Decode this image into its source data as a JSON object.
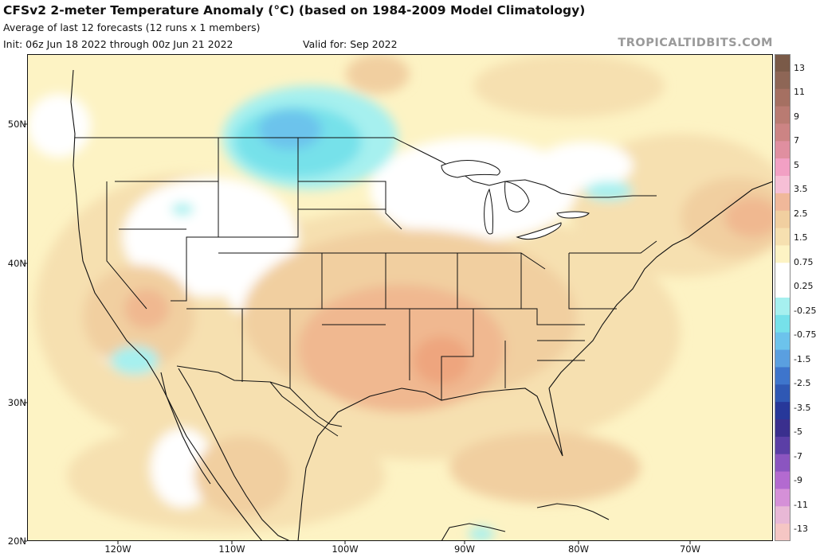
{
  "header": {
    "title": "CFSv2 2-meter Temperature Anomaly (°C) (based on 1984-2009 Model Climatology)",
    "subtitle": "Average of last 12 forecasts (12 runs x 1 members)",
    "init": "Init: 06z Jun 18 2022 through 00z Jun 21 2022",
    "valid": "Valid for: Sep 2022",
    "brand": "TROPICALTIDBITS.COM"
  },
  "axes": {
    "lat_labels": [
      "50N",
      "40N",
      "30N",
      "20N"
    ],
    "lon_labels": [
      "120W",
      "110W",
      "100W",
      "90W",
      "80W",
      "70W"
    ]
  },
  "colorbar": {
    "labels": [
      "13",
      "11",
      "9",
      "7",
      "5",
      "3.5",
      "2.5",
      "1.5",
      "0.75",
      "0.25",
      "-0.25",
      "-0.75",
      "-1.5",
      "-2.5",
      "-3.5",
      "-5",
      "-7",
      "-9",
      "-11",
      "-13"
    ],
    "colors": [
      "#7a5a48",
      "#8e6656",
      "#a57062",
      "#b97b72",
      "#cc8484",
      "#e08fa0",
      "#f2a0c4",
      "#f6bfd6",
      "#f0b89a",
      "#f1cfa0",
      "#f6e0b0",
      "#fdf3c4",
      "#ffffff",
      "#ffffff",
      "#a6f0ef",
      "#76e1ea",
      "#6cc3ec",
      "#5a9fe0",
      "#3e75cc",
      "#2f58b4",
      "#27389a",
      "#3a2f8e",
      "#5b3fa6",
      "#8b55c0",
      "#b36ad0",
      "#d590d8",
      "#e8b8d6",
      "#f5c6c4"
    ]
  },
  "colors": {
    "ocean_base": "#fdf3c4",
    "warm_light": "#f6e0b0",
    "warm_mid": "#f1cfa0",
    "warm_strong": "#f0b890",
    "warm_max": "#eea57e",
    "cool_light": "#a6f0ef",
    "cool_mid": "#76e1ea",
    "cool_strong": "#6cc3ec",
    "neutral": "#ffffff"
  }
}
